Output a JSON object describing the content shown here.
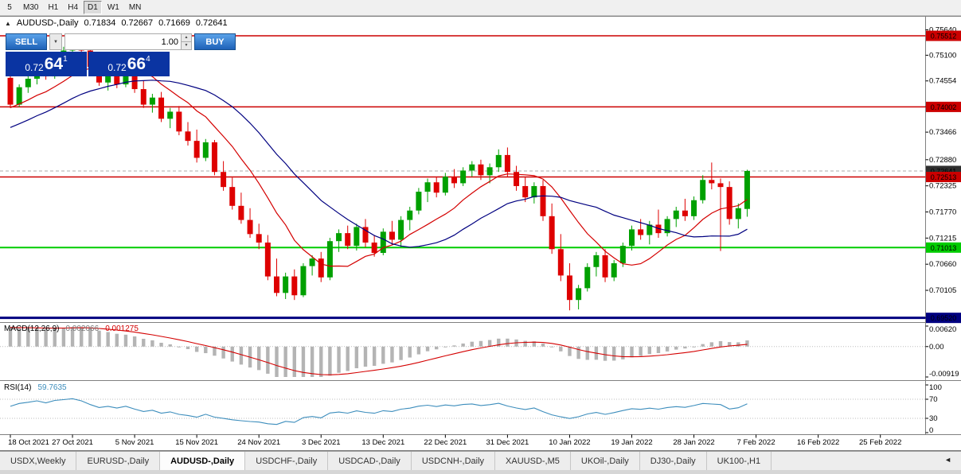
{
  "toolbar": {
    "periods": [
      "5",
      "M30",
      "H1",
      "H4",
      "D1",
      "W1",
      "MN"
    ],
    "active": "D1"
  },
  "quote_line": {
    "icon": "▲",
    "symbol": "AUDUSD-,Daily",
    "open": "0.71834",
    "high": "0.72667",
    "low": "0.71669",
    "close": "0.72641"
  },
  "trade_panel": {
    "sell_label": "SELL",
    "buy_label": "BUY",
    "volume": "1.00",
    "sell_price": {
      "base": "0.72",
      "pips": "64",
      "pt": "1"
    },
    "buy_price": {
      "base": "0.72",
      "pips": "66",
      "pt": "4"
    }
  },
  "colors": {
    "bull": "#00A000",
    "bear": "#DE0000",
    "ma_fast": "#D40000",
    "ma_slow": "#000080",
    "border": "#808080",
    "macd_bar": "#B4B4B4",
    "macd_signal": "#D40000",
    "rsi_line": "#3C8DBC",
    "dotted": "#BDBDBD",
    "bid_line": "#ABABAB"
  },
  "chart_data": {
    "type": "candlestick",
    "symbol": "AUDUSD-",
    "timeframe": "Daily",
    "y_range": [
      0.6943,
      0.758
    ],
    "y_axis": [
      0.7564,
      0.751,
      0.74554,
      0.74008,
      0.73466,
      0.7288,
      0.72325,
      0.7177,
      0.71215,
      0.7066,
      0.70105,
      0.6952
    ],
    "x_labels": [
      {
        "i": 0,
        "t": "18 Oct 2021"
      },
      {
        "i": 7,
        "t": "27 Oct 2021"
      },
      {
        "i": 14,
        "t": "5 Nov 2021"
      },
      {
        "i": 21,
        "t": "15 Nov 2021"
      },
      {
        "i": 28,
        "t": "24 Nov 2021"
      },
      {
        "i": 35,
        "t": "3 Dec 2021"
      },
      {
        "i": 42,
        "t": "13 Dec 2021"
      },
      {
        "i": 49,
        "t": "22 Dec 2021"
      },
      {
        "i": 56,
        "t": "31 Dec 2021"
      },
      {
        "i": 63,
        "t": "10 Jan 2022"
      },
      {
        "i": 70,
        "t": "19 Jan 2022"
      },
      {
        "i": 77,
        "t": "28 Jan 2022"
      },
      {
        "i": 84,
        "t": "7 Feb 2022"
      },
      {
        "i": 91,
        "t": "16 Feb 2022"
      },
      {
        "i": 98,
        "t": "25 Feb 2022"
      }
    ],
    "levels": [
      {
        "price": 0.75512,
        "color": "#CC0000",
        "width": 1.5,
        "badge_bg": "#CC0000",
        "badge_fg": "#FFFFFF"
      },
      {
        "price": 0.74002,
        "color": "#CC0000",
        "width": 1.5,
        "badge_bg": "#CC0000",
        "badge_fg": "#FFFFFF"
      },
      {
        "price": 0.72513,
        "color": "#CC0000",
        "width": 1.5,
        "badge_bg": "#CC0000",
        "badge_fg": "#FFFFFF"
      },
      {
        "price": 0.71013,
        "color": "#00CC00",
        "width": 2,
        "badge_bg": "#00CC00",
        "badge_fg": "#000000"
      },
      {
        "price": 0.6952,
        "color": "#000080",
        "width": 3,
        "badge_bg": "#000080",
        "badge_fg": "#FFFFFF"
      }
    ],
    "current_price": {
      "price": 0.72641,
      "badge_bg": "#2F2F2F",
      "badge_fg": "#FFFFFF"
    },
    "ma_fast_period": 10,
    "ma_slow_period": 21,
    "candles": [
      [
        0.7462,
        0.7478,
        0.7398,
        0.7405
      ],
      [
        0.7405,
        0.7448,
        0.74,
        0.7442
      ],
      [
        0.7442,
        0.7468,
        0.743,
        0.746
      ],
      [
        0.746,
        0.7488,
        0.7448,
        0.7482
      ],
      [
        0.7482,
        0.7495,
        0.7458,
        0.7465
      ],
      [
        0.7465,
        0.7512,
        0.746,
        0.7505
      ],
      [
        0.7505,
        0.7528,
        0.749,
        0.752
      ],
      [
        0.752,
        0.7545,
        0.7505,
        0.7538
      ],
      [
        0.7538,
        0.7552,
        0.7512,
        0.752
      ],
      [
        0.752,
        0.754,
        0.7478,
        0.7485
      ],
      [
        0.7485,
        0.75,
        0.7445,
        0.7452
      ],
      [
        0.7452,
        0.7475,
        0.7435,
        0.7468
      ],
      [
        0.7468,
        0.7482,
        0.744,
        0.7448
      ],
      [
        0.7448,
        0.7478,
        0.7442,
        0.7472
      ],
      [
        0.7472,
        0.748,
        0.743,
        0.7438
      ],
      [
        0.7438,
        0.7455,
        0.7398,
        0.7405
      ],
      [
        0.7405,
        0.7428,
        0.7388,
        0.742
      ],
      [
        0.742,
        0.7432,
        0.7368,
        0.7375
      ],
      [
        0.7375,
        0.7398,
        0.7355,
        0.739
      ],
      [
        0.739,
        0.7402,
        0.734,
        0.7348
      ],
      [
        0.7348,
        0.7368,
        0.7318,
        0.7328
      ],
      [
        0.7328,
        0.7352,
        0.7282,
        0.7292
      ],
      [
        0.7292,
        0.7332,
        0.7285,
        0.7325
      ],
      [
        0.7325,
        0.733,
        0.7255,
        0.7262
      ],
      [
        0.7262,
        0.7285,
        0.7222,
        0.723
      ],
      [
        0.723,
        0.725,
        0.7182,
        0.719
      ],
      [
        0.719,
        0.7218,
        0.7152,
        0.716
      ],
      [
        0.716,
        0.7185,
        0.7122,
        0.713
      ],
      [
        0.713,
        0.7152,
        0.7098,
        0.7112
      ],
      [
        0.7112,
        0.7128,
        0.7032,
        0.704
      ],
      [
        0.704,
        0.7078,
        0.6998,
        0.7005
      ],
      [
        0.7005,
        0.7048,
        0.6992,
        0.704
      ],
      [
        0.704,
        0.7055,
        0.699,
        0.7
      ],
      [
        0.7,
        0.7068,
        0.6996,
        0.7062
      ],
      [
        0.7062,
        0.7085,
        0.7042,
        0.7078
      ],
      [
        0.7078,
        0.7092,
        0.7028,
        0.7038
      ],
      [
        0.7038,
        0.7122,
        0.7032,
        0.7115
      ],
      [
        0.7115,
        0.714,
        0.7092,
        0.7132
      ],
      [
        0.7132,
        0.7148,
        0.7098,
        0.7105
      ],
      [
        0.7105,
        0.7152,
        0.7095,
        0.7145
      ],
      [
        0.7145,
        0.7162,
        0.7102,
        0.7112
      ],
      [
        0.7112,
        0.7128,
        0.7082,
        0.709
      ],
      [
        0.709,
        0.7142,
        0.7085,
        0.7135
      ],
      [
        0.7135,
        0.7158,
        0.7108,
        0.7118
      ],
      [
        0.7118,
        0.7168,
        0.7102,
        0.716
      ],
      [
        0.716,
        0.7188,
        0.7138,
        0.718
      ],
      [
        0.718,
        0.7228,
        0.7172,
        0.722
      ],
      [
        0.722,
        0.7248,
        0.7198,
        0.724
      ],
      [
        0.724,
        0.7252,
        0.7208,
        0.7218
      ],
      [
        0.7218,
        0.726,
        0.7212,
        0.7252
      ],
      [
        0.7252,
        0.7268,
        0.7228,
        0.7238
      ],
      [
        0.7238,
        0.7272,
        0.7232,
        0.7265
      ],
      [
        0.7265,
        0.7285,
        0.7252,
        0.7278
      ],
      [
        0.7278,
        0.7288,
        0.7245,
        0.7255
      ],
      [
        0.7255,
        0.728,
        0.7238,
        0.7272
      ],
      [
        0.7272,
        0.731,
        0.7262,
        0.7298
      ],
      [
        0.7298,
        0.7314,
        0.7252,
        0.7262
      ],
      [
        0.7262,
        0.7275,
        0.7222,
        0.7232
      ],
      [
        0.7232,
        0.7252,
        0.7198,
        0.7208
      ],
      [
        0.7208,
        0.724,
        0.7195,
        0.7232
      ],
      [
        0.7232,
        0.7245,
        0.7158,
        0.7168
      ],
      [
        0.7168,
        0.7195,
        0.7088,
        0.7098
      ],
      [
        0.7098,
        0.713,
        0.703,
        0.7042
      ],
      [
        0.7042,
        0.7068,
        0.6968,
        0.699
      ],
      [
        0.699,
        0.7022,
        0.697,
        0.7015
      ],
      [
        0.7015,
        0.7068,
        0.7008,
        0.706
      ],
      [
        0.706,
        0.7092,
        0.704,
        0.7085
      ],
      [
        0.7085,
        0.7098,
        0.7028,
        0.7038
      ],
      [
        0.7038,
        0.7075,
        0.703,
        0.7068
      ],
      [
        0.7068,
        0.7112,
        0.706,
        0.7105
      ],
      [
        0.7105,
        0.7148,
        0.7095,
        0.714
      ],
      [
        0.714,
        0.7162,
        0.7118,
        0.7128
      ],
      [
        0.7128,
        0.7158,
        0.7108,
        0.715
      ],
      [
        0.715,
        0.7182,
        0.7122,
        0.7132
      ],
      [
        0.7132,
        0.7168,
        0.7125,
        0.7162
      ],
      [
        0.7162,
        0.7188,
        0.7145,
        0.718
      ],
      [
        0.718,
        0.7205,
        0.7158,
        0.7168
      ],
      [
        0.7168,
        0.721,
        0.716,
        0.7202
      ],
      [
        0.7202,
        0.7255,
        0.7195,
        0.7245
      ],
      [
        0.7245,
        0.7282,
        0.7225,
        0.7238
      ],
      [
        0.7238,
        0.7248,
        0.7094,
        0.723
      ],
      [
        0.723,
        0.7242,
        0.715,
        0.7162
      ],
      [
        0.7162,
        0.7195,
        0.7142,
        0.7185
      ],
      [
        0.71834,
        0.72667,
        0.71669,
        0.72641
      ]
    ]
  },
  "macd": {
    "label": "MACD(12,26,9)",
    "value_main": "0.002066",
    "value_signal": "0.001275",
    "params": [
      12,
      26,
      9
    ],
    "range": [
      -0.00919,
      0.0062
    ],
    "axis": [
      {
        "v": 0.0062,
        "t": "0.00620"
      },
      {
        "v": 0,
        "t": "0.00"
      },
      {
        "v": -0.00919,
        "t": "-0.00919"
      }
    ]
  },
  "rsi": {
    "label": "RSI(14)",
    "value": "59.7635",
    "period": 14,
    "axis": [
      {
        "v": 100,
        "t": "100"
      },
      {
        "v": 70,
        "t": "70"
      },
      {
        "v": 30,
        "t": "30"
      },
      {
        "v": 0,
        "t": "0"
      }
    ],
    "levels": [
      70,
      30
    ]
  },
  "tabs": {
    "items": [
      "USDX,Weekly",
      "EURUSD-,Daily",
      "AUDUSD-,Daily",
      "USDCHF-,Daily",
      "USDCAD-,Daily",
      "USDCNH-,Daily",
      "XAUUSD-,M5",
      "UKOil-,Daily",
      "DJ30-,Daily",
      "UK100-,H1"
    ],
    "active": "AUDUSD-,Daily",
    "scroll_left_icon": "◄"
  }
}
